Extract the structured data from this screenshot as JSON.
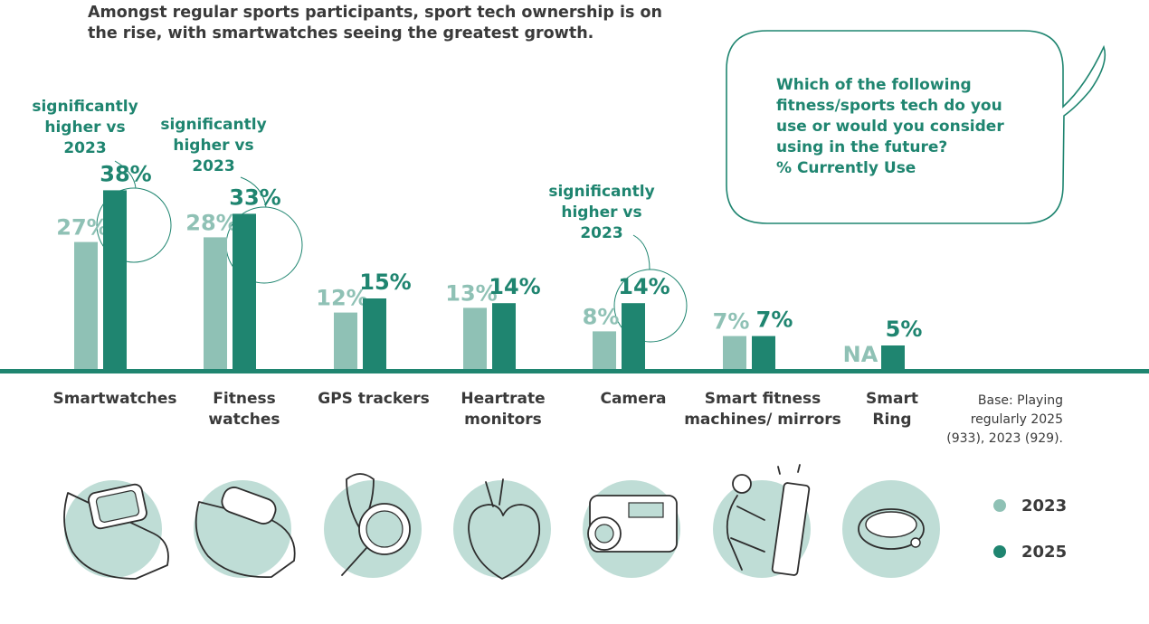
{
  "headline": {
    "line1": "Amongst regular sports participants, sport tech ownership is on",
    "line2": "the rise, with smartwatches seeing the greatest growth."
  },
  "question": {
    "line1": "Which of the following",
    "line2": "fitness/sports tech do you",
    "line3": "use or would you consider",
    "line4": "using in the future?",
    "line5": "% Currently Use"
  },
  "note": {
    "line1": "significantly",
    "line2": "higher vs",
    "line3": "2023"
  },
  "base_note": {
    "line1": "Base: Playing",
    "line2": "regularly 2025",
    "line3": "(933), 2023 (929)."
  },
  "category_labels": [
    {
      "line1": "Smartwatches",
      "line2": ""
    },
    {
      "line1": "Fitness",
      "line2": "watches"
    },
    {
      "line1": "GPS trackers",
      "line2": ""
    },
    {
      "line1": "Heartrate",
      "line2": "monitors"
    },
    {
      "line1": "Camera",
      "line2": ""
    },
    {
      "line1": "Smart fitness",
      "line2": "machines/ mirrors"
    },
    {
      "line1": "Smart",
      "line2": "Ring"
    }
  ],
  "icons": [
    "smartwatch-icon",
    "fitness-band-icon",
    "gps-tracker-icon",
    "heart-icon",
    "camera-icon",
    "smart-mirror-icon",
    "ring-icon"
  ],
  "colors": {
    "series_2023": "#8fc1b5",
    "series_2025": "#1f8570",
    "text": "#3a3a3a",
    "icon_circle": "#bfddd6",
    "baseline": "#1f8570"
  },
  "chart_data": {
    "type": "bar",
    "categories": [
      "Smartwatches",
      "Fitness watches",
      "GPS trackers",
      "Heartrate monitors",
      "Camera",
      "Smart fitness machines/ mirrors",
      "Smart Ring"
    ],
    "series": [
      {
        "name": "2023",
        "values": [
          27,
          28,
          12,
          13,
          8,
          7,
          null
        ],
        "labels": [
          "27%",
          "28%",
          "12%",
          "13%",
          "8%",
          "7%",
          "NA"
        ]
      },
      {
        "name": "2025",
        "values": [
          38,
          33,
          15,
          14,
          14,
          7,
          5
        ],
        "labels": [
          "38%",
          "33%",
          "15%",
          "14%",
          "14%",
          "7%",
          "5%"
        ]
      }
    ],
    "significant_2025": [
      true,
      true,
      false,
      false,
      true,
      false,
      false
    ],
    "ylim": [
      0,
      40
    ],
    "legend": "bottom-right",
    "grid": false
  }
}
